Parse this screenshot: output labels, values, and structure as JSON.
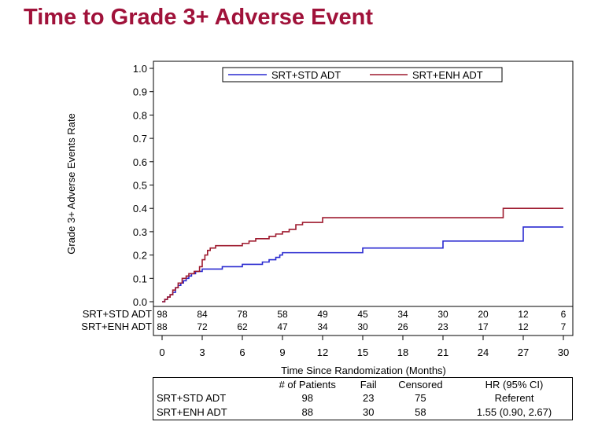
{
  "title": "Time to Grade 3+ Adverse Event",
  "colors": {
    "title": "#a0123a",
    "std": "#2a2ad0",
    "enh": "#9e1a2e"
  },
  "chart_data": {
    "type": "line",
    "step": true,
    "xlabel": "Time Since Randomization (Months)",
    "ylabel": "Grade 3+ Adverse Events Rate",
    "xlim": [
      0,
      30
    ],
    "ylim": [
      0,
      1.0
    ],
    "x_ticks": [
      "0",
      "3",
      "6",
      "9",
      "12",
      "15",
      "18",
      "21",
      "24",
      "27",
      "30"
    ],
    "y_ticks": [
      "0.0",
      "0.1",
      "0.2",
      "0.3",
      "0.4",
      "0.5",
      "0.6",
      "0.7",
      "0.8",
      "0.9",
      "1.0"
    ],
    "legend": {
      "position": "top",
      "entries": [
        "SRT+STD ADT",
        "SRT+ENH ADT"
      ]
    },
    "series": [
      {
        "name": "SRT+STD ADT",
        "color": "#2a2ad0",
        "points": [
          [
            0,
            0
          ],
          [
            0.2,
            0.01
          ],
          [
            0.4,
            0.02
          ],
          [
            0.6,
            0.03
          ],
          [
            0.8,
            0.04
          ],
          [
            1.0,
            0.06
          ],
          [
            1.2,
            0.07
          ],
          [
            1.4,
            0.08
          ],
          [
            1.6,
            0.09
          ],
          [
            1.8,
            0.1
          ],
          [
            2.0,
            0.11
          ],
          [
            2.2,
            0.12
          ],
          [
            2.5,
            0.13
          ],
          [
            3.0,
            0.14
          ],
          [
            4.5,
            0.15
          ],
          [
            6.0,
            0.16
          ],
          [
            7.5,
            0.17
          ],
          [
            8.0,
            0.18
          ],
          [
            8.5,
            0.19
          ],
          [
            8.8,
            0.2
          ],
          [
            9.0,
            0.21
          ],
          [
            15.0,
            0.23
          ],
          [
            21.0,
            0.26
          ],
          [
            27.0,
            0.32
          ],
          [
            30,
            0.32
          ]
        ]
      },
      {
        "name": "SRT+ENH ADT",
        "color": "#9e1a2e",
        "points": [
          [
            0,
            0
          ],
          [
            0.2,
            0.01
          ],
          [
            0.4,
            0.02
          ],
          [
            0.6,
            0.03
          ],
          [
            0.8,
            0.05
          ],
          [
            1.0,
            0.06
          ],
          [
            1.2,
            0.08
          ],
          [
            1.5,
            0.1
          ],
          [
            1.8,
            0.11
          ],
          [
            2.0,
            0.12
          ],
          [
            2.4,
            0.13
          ],
          [
            2.8,
            0.15
          ],
          [
            3.0,
            0.18
          ],
          [
            3.2,
            0.2
          ],
          [
            3.4,
            0.22
          ],
          [
            3.6,
            0.23
          ],
          [
            4.0,
            0.24
          ],
          [
            6.0,
            0.25
          ],
          [
            6.5,
            0.26
          ],
          [
            7.0,
            0.27
          ],
          [
            8.0,
            0.28
          ],
          [
            8.5,
            0.29
          ],
          [
            9.0,
            0.3
          ],
          [
            9.5,
            0.31
          ],
          [
            10.0,
            0.33
          ],
          [
            10.5,
            0.34
          ],
          [
            12.0,
            0.36
          ],
          [
            25.5,
            0.4
          ],
          [
            30,
            0.4
          ]
        ]
      }
    ],
    "risk_table": {
      "rows": [
        {
          "label": "SRT+STD ADT",
          "values": [
            "98",
            "84",
            "78",
            "58",
            "49",
            "45",
            "34",
            "30",
            "20",
            "12",
            "6"
          ]
        },
        {
          "label": "SRT+ENH ADT",
          "values": [
            "88",
            "72",
            "62",
            "47",
            "34",
            "30",
            "26",
            "23",
            "17",
            "12",
            "7"
          ]
        }
      ]
    }
  },
  "summary_table": {
    "headers": [
      "",
      "# of Patients",
      "Fail",
      "Censored",
      "HR (95% CI)"
    ],
    "rows": [
      [
        "SRT+STD ADT",
        "98",
        "23",
        "75",
        "Referent"
      ],
      [
        "SRT+ENH ADT",
        "88",
        "30",
        "58",
        "1.55 (0.90, 2.67)"
      ]
    ]
  }
}
